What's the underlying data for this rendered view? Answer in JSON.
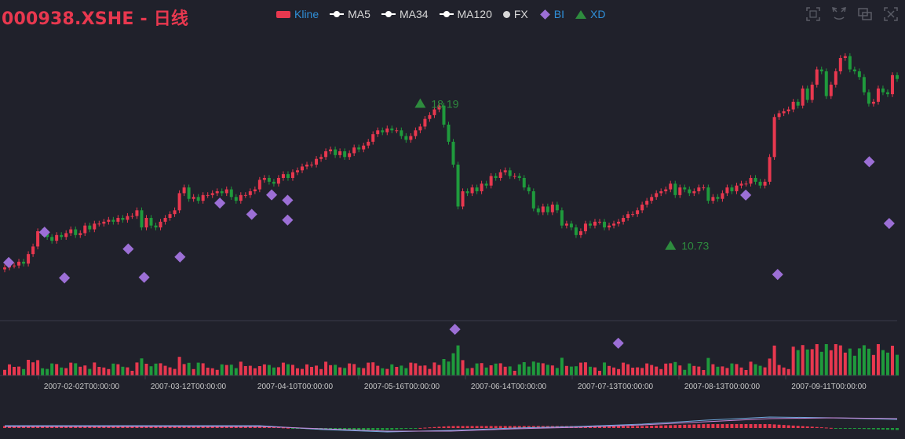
{
  "title": "000938.XSHE - 日线",
  "legend": [
    {
      "name": "Kline",
      "swatch": "rect",
      "color": "#e8384f",
      "text_color": "#2f8fd8"
    },
    {
      "name": "MA5",
      "swatch": "line",
      "color": "#ffffff",
      "text_color": "#d8d8d8"
    },
    {
      "name": "MA34",
      "swatch": "line",
      "color": "#ffffff",
      "text_color": "#d8d8d8"
    },
    {
      "name": "MA120",
      "swatch": "line",
      "color": "#ffffff",
      "text_color": "#d8d8d8"
    },
    {
      "name": "FX",
      "swatch": "dot",
      "color": "#d8d8d8",
      "text_color": "#d8d8d8"
    },
    {
      "name": "BI",
      "swatch": "diamond",
      "color": "#9c6fd6",
      "text_color": "#2f8fd8"
    },
    {
      "name": "XD",
      "swatch": "triangle",
      "color": "#2e8b3e",
      "text_color": "#2f8fd8"
    }
  ],
  "toolbox": [
    {
      "name": "zoom-select-icon"
    },
    {
      "name": "zoom-reset-icon"
    },
    {
      "name": "data-view-icon"
    },
    {
      "name": "restore-icon"
    }
  ],
  "colors": {
    "up": "#e8384f",
    "down": "#1f9a3c",
    "bi": "#9c6fd6",
    "xd": "#2e8b3e",
    "macd_dif": "#6fa8dc",
    "macd_dea": "#c486d6"
  },
  "chart_data": {
    "type": "candlestick",
    "x_ticks": [
      "2007-02-02T00:00:00",
      "2007-03-12T00:00:00",
      "2007-04-10T00:00:00",
      "2007-05-16T00:00:00",
      "2007-06-14T00:00:00",
      "2007-07-13T00:00:00",
      "2007-08-13T00:00:00",
      "2007-09-11T00:00:00"
    ],
    "y_range": [
      8.0,
      22.0
    ],
    "closes": [
      9.6,
      9.7,
      9.7,
      9.9,
      9.8,
      10.3,
      10.7,
      11.5,
      11.4,
      11.2,
      11.0,
      11.3,
      11.2,
      11.4,
      11.6,
      11.3,
      11.4,
      11.8,
      11.6,
      11.9,
      11.9,
      12.0,
      12.1,
      12.0,
      12.2,
      12.1,
      12.3,
      12.3,
      12.6,
      11.7,
      12.2,
      11.8,
      11.7,
      12.0,
      12.2,
      12.4,
      12.6,
      13.5,
      13.8,
      13.2,
      13.3,
      13.1,
      13.4,
      13.4,
      13.5,
      13.6,
      13.5,
      13.7,
      13.3,
      13.1,
      13.4,
      13.4,
      13.6,
      13.7,
      14.2,
      14.3,
      14.1,
      14.0,
      14.3,
      14.5,
      14.3,
      14.6,
      14.7,
      14.9,
      15.0,
      15.0,
      15.3,
      15.4,
      15.7,
      15.8,
      15.5,
      15.7,
      15.4,
      15.6,
      15.9,
      15.8,
      16.0,
      16.2,
      16.6,
      16.8,
      16.7,
      16.9,
      16.8,
      16.8,
      16.5,
      16.3,
      16.5,
      16.8,
      17.0,
      17.4,
      17.6,
      17.9,
      18.1,
      17.1,
      16.2,
      15.0,
      12.8,
      13.6,
      13.5,
      13.8,
      13.6,
      14.0,
      13.9,
      14.4,
      14.3,
      14.6,
      14.7,
      14.4,
      14.4,
      14.3,
      13.8,
      13.6,
      12.7,
      12.5,
      12.8,
      12.5,
      12.9,
      12.6,
      11.8,
      11.9,
      11.7,
      11.3,
      11.5,
      11.9,
      11.8,
      12.0,
      12.0,
      11.7,
      11.8,
      11.9,
      12.0,
      12.2,
      12.4,
      12.4,
      12.6,
      12.9,
      13.1,
      13.3,
      13.5,
      13.6,
      13.7,
      14.0,
      13.4,
      13.8,
      13.7,
      13.5,
      13.6,
      13.8,
      13.8,
      13.1,
      13.3,
      13.2,
      13.5,
      13.8,
      13.6,
      13.9,
      14.0,
      14.0,
      14.3,
      14.1,
      13.9,
      14.1,
      15.4,
      17.5,
      17.7,
      17.8,
      17.9,
      18.3,
      18.1,
      19.0,
      18.4,
      19.2,
      20.0,
      19.9,
      18.6,
      19.2,
      19.9,
      20.6,
      20.7,
      20.0,
      19.9,
      19.6,
      18.8,
      18.2,
      18.3,
      19.0,
      18.8,
      18.7,
      19.7,
      19.5
    ],
    "bi_points": [
      [
        1,
        16.06
      ],
      [
        10,
        17.65
      ],
      [
        15,
        15.25
      ],
      [
        31,
        16.77
      ],
      [
        35,
        15.28
      ],
      [
        44,
        16.35
      ],
      [
        54,
        19.18
      ],
      [
        62,
        18.59
      ],
      [
        67,
        19.61
      ],
      [
        71,
        18.29
      ],
      [
        71,
        19.33
      ],
      [
        113,
        12.55
      ],
      [
        154,
        11.82
      ],
      [
        186,
        19.6
      ],
      [
        194,
        15.43
      ],
      [
        217,
        21.35
      ],
      [
        222,
        18.11
      ]
    ],
    "xd_points": [
      [
        88,
        18.19,
        "18.19"
      ],
      [
        141,
        10.73,
        "10.73"
      ]
    ],
    "volume_series": [
      [
        0,
        28
      ],
      [
        1,
        27
      ],
      [
        2,
        25
      ],
      [
        3,
        33
      ],
      [
        4,
        22
      ],
      [
        5,
        24
      ],
      [
        6,
        22
      ],
      [
        7,
        28
      ],
      [
        8,
        20
      ],
      [
        9,
        27
      ],
      [
        10,
        22
      ],
      [
        11,
        24
      ],
      [
        12,
        26
      ],
      [
        13,
        23
      ],
      [
        14,
        34
      ],
      [
        15,
        34
      ],
      [
        16,
        36
      ],
      [
        17,
        28
      ],
      [
        18,
        26
      ],
      [
        19,
        25
      ],
      [
        20,
        22
      ],
      [
        21,
        22
      ],
      [
        22,
        22
      ],
      [
        23,
        24
      ],
      [
        24,
        28
      ],
      [
        25,
        22
      ],
      [
        26,
        22
      ],
      [
        27,
        22
      ]
    ],
    "macd": {
      "dif": [
        0.3,
        0.3,
        0.3,
        0.3,
        0.3,
        -0.2,
        -0.5,
        -0.3,
        0.0,
        0.2,
        0.5,
        1.0,
        1.4,
        1.3,
        1.1
      ],
      "dea": [
        0.2,
        0.2,
        0.2,
        0.2,
        0.2,
        -0.1,
        -0.4,
        -0.4,
        -0.1,
        0.1,
        0.4,
        0.8,
        1.2,
        1.3,
        1.2
      ]
    }
  }
}
